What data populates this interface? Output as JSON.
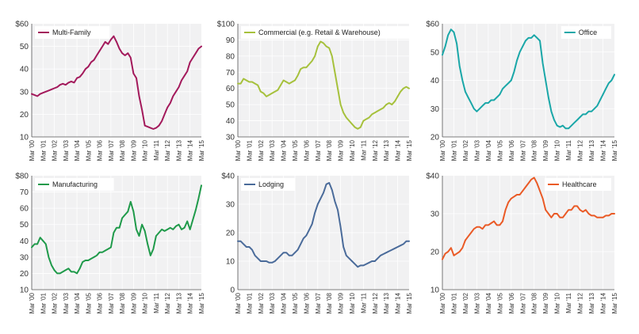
{
  "colors": {
    "multifamily": "#a3195b",
    "commercial": "#a6c13c",
    "office": "#1aa7a8",
    "manufacturing": "#1f9a4a",
    "lodging": "#4a6b9a",
    "healthcare": "#ea5a26"
  },
  "chart_data": [
    {
      "type": "line",
      "legend_position": "top-left",
      "grid": true,
      "x_tick_labels": [
        "Mar '00",
        "Mar '01",
        "Mar '02",
        "Mar '03",
        "Mar '04",
        "Mar '05",
        "Mar '06",
        "Mar '07",
        "Mar '08",
        "Mar '09",
        "Mar '10",
        "Mar '11",
        "Mar '12",
        "Mar '13",
        "Mar '14",
        "Mar '15"
      ],
      "y_ticks": [
        10,
        20,
        30,
        40,
        50,
        60
      ],
      "y_tick_labels": [
        "10",
        "20",
        "30",
        "40",
        "50",
        "$60"
      ],
      "ylim": [
        10,
        60
      ],
      "series": [
        {
          "name": "Multi-Family",
          "color_key": "multifamily",
          "t": [
            0,
            0.25,
            0.5,
            0.75,
            1,
            1.25,
            1.5,
            1.75,
            2,
            2.25,
            2.5,
            2.75,
            3,
            3.25,
            3.5,
            3.75,
            4,
            4.25,
            4.5,
            4.75,
            5,
            5.25,
            5.5,
            5.75,
            6,
            6.25,
            6.5,
            6.75,
            7,
            7.25,
            7.5,
            7.75,
            8,
            8.25,
            8.5,
            8.75,
            9,
            9.25,
            9.5,
            9.75,
            10,
            10.25,
            10.5,
            10.75,
            11,
            11.25,
            11.5,
            11.75,
            12,
            12.25,
            12.5,
            12.75,
            13,
            13.25,
            13.5,
            13.75,
            14,
            14.25,
            14.5,
            14.75,
            15
          ],
          "values": [
            29,
            28.5,
            28,
            29,
            29.5,
            30,
            30.5,
            31,
            31.5,
            32,
            33,
            33.5,
            33,
            34,
            34.5,
            34,
            36,
            36.5,
            38,
            40,
            41,
            43,
            44,
            46,
            48,
            50,
            52,
            51,
            53,
            54.5,
            52,
            49,
            47,
            46,
            47,
            45,
            38,
            36,
            28,
            22,
            15,
            14.5,
            14,
            13.5,
            14,
            15,
            17,
            20,
            23,
            25,
            28,
            30,
            32,
            35,
            37,
            39,
            43,
            45,
            47,
            49,
            50
          ]
        }
      ]
    },
    {
      "type": "line",
      "legend_position": "top-left",
      "grid": true,
      "x_tick_labels": [
        "Mar '00",
        "Mar '01",
        "Mar '02",
        "Mar '03",
        "Mar '04",
        "Mar '05",
        "Mar '06",
        "Mar '07",
        "Mar '08",
        "Mar '09",
        "Mar '10",
        "Mar '11",
        "Mar '12",
        "Mar '13",
        "Mar '14",
        "Mar '15"
      ],
      "y_ticks": [
        30,
        40,
        50,
        60,
        70,
        80,
        90,
        100
      ],
      "y_tick_labels": [
        "30",
        "40",
        "50",
        "60",
        "70",
        "80",
        "90",
        "$100"
      ],
      "ylim": [
        30,
        100
      ],
      "series": [
        {
          "name": "Commercial (e.g. Retail & Warehouse)",
          "color_key": "commercial",
          "t": [
            0,
            0.25,
            0.5,
            0.75,
            1,
            1.25,
            1.5,
            1.75,
            2,
            2.25,
            2.5,
            2.75,
            3,
            3.25,
            3.5,
            3.75,
            4,
            4.25,
            4.5,
            4.75,
            5,
            5.25,
            5.5,
            5.75,
            6,
            6.25,
            6.5,
            6.75,
            7,
            7.25,
            7.5,
            7.75,
            8,
            8.25,
            8.5,
            8.75,
            9,
            9.25,
            9.5,
            9.75,
            10,
            10.25,
            10.5,
            10.75,
            11,
            11.25,
            11.5,
            11.75,
            12,
            12.25,
            12.5,
            12.75,
            13,
            13.25,
            13.5,
            13.75,
            14,
            14.25,
            14.5,
            14.75,
            15
          ],
          "values": [
            63,
            63,
            66,
            65,
            64,
            64,
            63,
            62,
            58,
            57,
            55,
            56,
            57,
            58,
            59,
            62,
            65,
            64,
            63,
            64,
            65,
            68,
            72,
            73,
            73,
            75,
            77,
            80,
            86,
            89,
            88,
            86,
            85,
            80,
            70,
            60,
            50,
            45,
            42,
            40,
            38,
            36,
            35,
            36,
            40,
            41,
            42,
            44,
            45,
            46,
            47,
            48,
            50,
            51,
            50,
            52,
            55,
            58,
            60,
            61,
            60
          ]
        }
      ]
    },
    {
      "type": "line",
      "legend_position": "top-right",
      "grid": true,
      "x_tick_labels": [
        "Mar '00",
        "Mar '01",
        "Mar '02",
        "Mar '03",
        "Mar '04",
        "Mar '05",
        "Mar '06",
        "Mar '07",
        "Mar '08",
        "Mar '09",
        "Mar '10",
        "Mar '11",
        "Mar '12",
        "Mar '13",
        "Mar '14",
        "Mar '15"
      ],
      "y_ticks": [
        20,
        30,
        40,
        50,
        60
      ],
      "y_tick_labels": [
        "20",
        "30",
        "40",
        "50",
        "$60"
      ],
      "ylim": [
        20,
        60
      ],
      "series": [
        {
          "name": "Office",
          "color_key": "office",
          "t": [
            0,
            0.25,
            0.5,
            0.75,
            1,
            1.25,
            1.5,
            1.75,
            2,
            2.25,
            2.5,
            2.75,
            3,
            3.25,
            3.5,
            3.75,
            4,
            4.25,
            4.5,
            4.75,
            5,
            5.25,
            5.5,
            5.75,
            6,
            6.25,
            6.5,
            6.75,
            7,
            7.25,
            7.5,
            7.75,
            8,
            8.25,
            8.5,
            8.75,
            9,
            9.25,
            9.5,
            9.75,
            10,
            10.25,
            10.5,
            10.75,
            11,
            11.25,
            11.5,
            11.75,
            12,
            12.25,
            12.5,
            12.75,
            13,
            13.25,
            13.5,
            13.75,
            14,
            14.25,
            14.5,
            14.75,
            15
          ],
          "values": [
            49,
            52,
            56,
            58,
            57,
            53,
            45,
            40,
            36,
            34,
            32,
            30,
            29,
            30,
            31,
            32,
            32,
            33,
            33,
            34,
            35,
            37,
            38,
            39,
            40,
            43,
            47,
            50,
            52,
            54,
            55,
            55,
            56,
            55,
            54,
            46,
            40,
            34,
            29,
            26,
            24,
            23.5,
            24,
            23,
            23,
            24,
            25,
            26,
            27,
            28,
            28,
            29,
            29,
            30,
            31,
            33,
            35,
            37,
            39,
            40,
            42
          ]
        }
      ]
    },
    {
      "type": "line",
      "legend_position": "top-left",
      "grid": true,
      "x_tick_labels": [
        "Mar '00",
        "Mar '01",
        "Mar '02",
        "Mar '03",
        "Mar '04",
        "Mar '05",
        "Mar '06",
        "Mar '07",
        "Mar '08",
        "Mar '09",
        "Mar '10",
        "Mar '11",
        "Mar '12",
        "Mar '13",
        "Mar '14",
        "Mar '15"
      ],
      "y_ticks": [
        10,
        20,
        30,
        40,
        50,
        60,
        70,
        80
      ],
      "y_tick_labels": [
        "10",
        "20",
        "30",
        "40",
        "50",
        "60",
        "70",
        "$80"
      ],
      "ylim": [
        10,
        80
      ],
      "series": [
        {
          "name": "Manufacturing",
          "color_key": "manufacturing",
          "t": [
            0,
            0.25,
            0.5,
            0.75,
            1,
            1.25,
            1.5,
            1.75,
            2,
            2.25,
            2.5,
            2.75,
            3,
            3.25,
            3.5,
            3.75,
            4,
            4.25,
            4.5,
            4.75,
            5,
            5.25,
            5.5,
            5.75,
            6,
            6.25,
            6.5,
            6.75,
            7,
            7.25,
            7.5,
            7.75,
            8,
            8.25,
            8.5,
            8.75,
            9,
            9.25,
            9.5,
            9.75,
            10,
            10.25,
            10.5,
            10.75,
            11,
            11.25,
            11.5,
            11.75,
            12,
            12.25,
            12.5,
            12.75,
            13,
            13.25,
            13.5,
            13.75,
            14,
            14.25,
            14.5,
            14.75,
            15
          ],
          "values": [
            36,
            38,
            38,
            42,
            40,
            38,
            30,
            25,
            22,
            20,
            20,
            21,
            22,
            23,
            21,
            21,
            20,
            23,
            27,
            28,
            28,
            29,
            30,
            31,
            33,
            33,
            34,
            35,
            36,
            45,
            48,
            48,
            54,
            56,
            58,
            64,
            58,
            47,
            43,
            50,
            46,
            38,
            31,
            35,
            43,
            45,
            47,
            46,
            47,
            48,
            47,
            49,
            50,
            47,
            48,
            52,
            47,
            53,
            59,
            66,
            74
          ]
        }
      ]
    },
    {
      "type": "line",
      "legend_position": "top-left",
      "grid": true,
      "x_tick_labels": [
        "Mar '00",
        "Mar '01",
        "Mar '02",
        "Mar '03",
        "Mar '04",
        "Mar '05",
        "Mar '06",
        "Mar '07",
        "Mar '08",
        "Mar '09",
        "Mar '10",
        "Mar '11",
        "Mar '12",
        "Mar '13",
        "Mar '14",
        "Mar '15"
      ],
      "y_ticks": [
        0,
        10,
        20,
        30,
        40
      ],
      "y_tick_labels": [
        "0",
        "10",
        "20",
        "30",
        "$40"
      ],
      "ylim": [
        0,
        40
      ],
      "series": [
        {
          "name": "Lodging",
          "color_key": "lodging",
          "t": [
            0,
            0.25,
            0.5,
            0.75,
            1,
            1.25,
            1.5,
            1.75,
            2,
            2.25,
            2.5,
            2.75,
            3,
            3.25,
            3.5,
            3.75,
            4,
            4.25,
            4.5,
            4.75,
            5,
            5.25,
            5.5,
            5.75,
            6,
            6.25,
            6.5,
            6.75,
            7,
            7.25,
            7.5,
            7.75,
            8,
            8.25,
            8.5,
            8.75,
            9,
            9.25,
            9.5,
            9.75,
            10,
            10.25,
            10.5,
            10.75,
            11,
            11.25,
            11.5,
            11.75,
            12,
            12.25,
            12.5,
            12.75,
            13,
            13.25,
            13.5,
            13.75,
            14,
            14.25,
            14.5,
            14.75,
            15
          ],
          "values": [
            17,
            17,
            16,
            15,
            15,
            14,
            12,
            11,
            10,
            10,
            10,
            9.5,
            9.5,
            10,
            11,
            12,
            13,
            13,
            12,
            12,
            13,
            14,
            16,
            18,
            19,
            21,
            23,
            27,
            30,
            32,
            34,
            37,
            37.5,
            35,
            31,
            28,
            22,
            15,
            12,
            11,
            10,
            9,
            8,
            8.5,
            8.5,
            9,
            9.5,
            10,
            10,
            11,
            12,
            12.5,
            13,
            13.5,
            14,
            14.5,
            15,
            15.5,
            16,
            17,
            17
          ]
        }
      ]
    },
    {
      "type": "line",
      "legend_position": "top-right",
      "grid": true,
      "x_tick_labels": [
        "Mar '00",
        "Mar '01",
        "Mar '02",
        "Mar '03",
        "Mar '04",
        "Mar '05",
        "Mar '06",
        "Mar '07",
        "Mar '08",
        "Mar '09",
        "Mar '10",
        "Mar '11",
        "Mar '12",
        "Mar '13",
        "Mar '14",
        "Mar '15"
      ],
      "y_ticks": [
        10,
        20,
        30,
        40
      ],
      "y_tick_labels": [
        "10",
        "20",
        "30",
        "$40"
      ],
      "ylim": [
        10,
        40
      ],
      "series": [
        {
          "name": "Healthcare",
          "color_key": "healthcare",
          "t": [
            0,
            0.25,
            0.5,
            0.75,
            1,
            1.25,
            1.5,
            1.75,
            2,
            2.25,
            2.5,
            2.75,
            3,
            3.25,
            3.5,
            3.75,
            4,
            4.25,
            4.5,
            4.75,
            5,
            5.25,
            5.5,
            5.75,
            6,
            6.25,
            6.5,
            6.75,
            7,
            7.25,
            7.5,
            7.75,
            8,
            8.25,
            8.5,
            8.75,
            9,
            9.25,
            9.5,
            9.75,
            10,
            10.25,
            10.5,
            10.75,
            11,
            11.25,
            11.5,
            11.75,
            12,
            12.25,
            12.5,
            12.75,
            13,
            13.25,
            13.5,
            13.75,
            14,
            14.25,
            14.5,
            14.75,
            15
          ],
          "values": [
            18,
            19.5,
            20,
            21,
            19,
            19.5,
            20,
            21,
            23,
            24,
            25,
            26,
            26.5,
            26.5,
            26,
            27,
            27,
            27.5,
            28,
            27,
            27,
            28,
            31,
            33,
            34,
            34.5,
            35,
            35,
            36,
            37,
            38,
            39,
            39.5,
            38,
            36,
            34,
            31,
            30,
            29,
            30,
            30,
            29,
            29,
            30,
            31,
            31,
            32,
            32,
            31,
            30.5,
            31,
            30,
            29.5,
            29.5,
            29,
            29,
            29,
            29.5,
            29.5,
            30,
            30
          ]
        }
      ]
    }
  ]
}
